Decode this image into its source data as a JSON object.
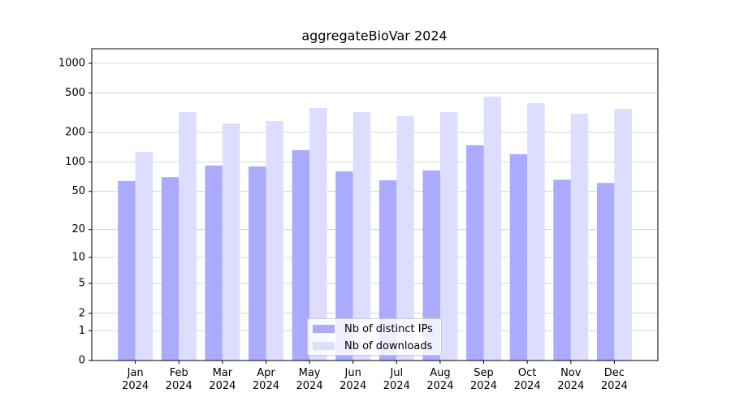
{
  "chart_data": {
    "type": "bar",
    "title": "aggregateBioVar 2024",
    "yscale": "log1p",
    "categories": [
      "Jan 2024",
      "Feb 2024",
      "Mar 2024",
      "Apr 2024",
      "May 2024",
      "Jun 2024",
      "Jul 2024",
      "Aug 2024",
      "Sep 2024",
      "Oct 2024",
      "Nov 2024",
      "Dec 2024"
    ],
    "series": [
      {
        "name": "Nb of distinct IPs",
        "color": "#aaaaff",
        "values": [
          64,
          70,
          92,
          90,
          132,
          80,
          65,
          82,
          148,
          120,
          66,
          61
        ]
      },
      {
        "name": "Nb of downloads",
        "color": "#ddddff",
        "values": [
          127,
          321,
          246,
          261,
          353,
          321,
          292,
          321,
          460,
          395,
          309,
          346
        ]
      }
    ],
    "ylim": [
      0,
      1405
    ],
    "yticks": [
      0,
      1,
      2,
      5,
      10,
      20,
      50,
      100,
      200,
      500,
      1000
    ],
    "grid": true,
    "legend": "lower center"
  }
}
